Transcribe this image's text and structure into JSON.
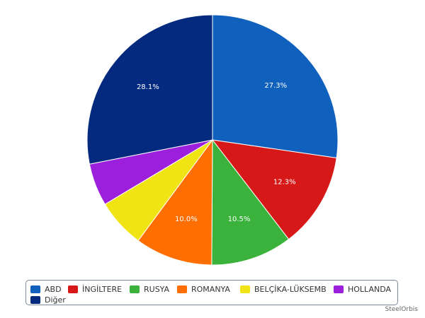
{
  "chart_data": {
    "type": "pie",
    "title": "",
    "slices": [
      {
        "label": "ABD",
        "value": 27.3,
        "value_label": "27.3%",
        "color": "#1060bd"
      },
      {
        "label": "İNGİLTERE",
        "value": 12.3,
        "value_label": "12.3%",
        "color": "#d71818"
      },
      {
        "label": "RUSYA",
        "value": 10.5,
        "value_label": "10.5%",
        "color": "#3ab23c"
      },
      {
        "label": "ROMANYA",
        "value": 10.0,
        "value_label": "10.0%",
        "color": "#ff6e00"
      },
      {
        "label": "BELÇİKA-LÜKSEMB",
        "value": 6.3,
        "value_label": "",
        "color": "#f0e414"
      },
      {
        "label": "HOLLANDA",
        "value": 5.5,
        "value_label": "",
        "color": "#9c1fdc"
      },
      {
        "label": "Diğer",
        "value": 28.1,
        "value_label": "28.1%",
        "color": "#032a7f"
      }
    ],
    "legend_position": "bottom"
  },
  "watermark": "SteelOrbis"
}
